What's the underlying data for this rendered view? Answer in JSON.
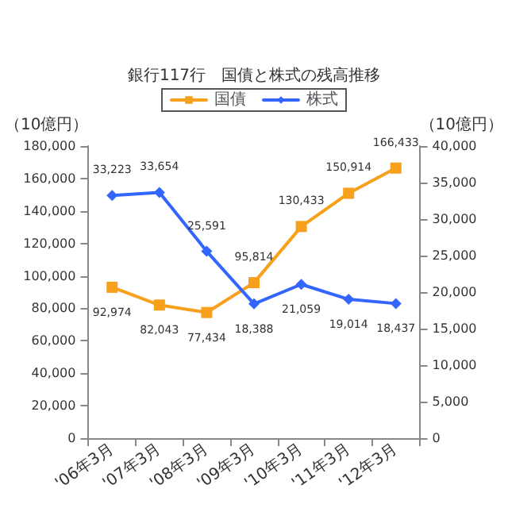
{
  "chart_data": {
    "type": "line",
    "title": "銀行117行　国債と株式の残高推移",
    "ylabel": "（10億円）",
    "y2label": "（10億円）",
    "categories": [
      "'06年3月",
      "'07年3月",
      "'08年3月",
      "'09年3月",
      "'10年3月",
      "'11年3月",
      "'12年3月"
    ],
    "series": [
      {
        "name": "国債",
        "color": "#f7a01c",
        "marker": "square",
        "values": [
          92974,
          82043,
          77434,
          95814,
          130433,
          150914,
          166433
        ],
        "value_labels": [
          "92,974",
          "82,043",
          "77,434",
          "95,814",
          "130,433",
          "150,914",
          "166,433"
        ]
      },
      {
        "name": "株式",
        "color": "#3366ff",
        "marker": "diamond",
        "axis": "y2",
        "values": [
          33223,
          33654,
          25591,
          18388,
          21059,
          19014,
          18437
        ],
        "value_labels": [
          "33,223",
          "33,654",
          "25,591",
          "18,388",
          "21,059",
          "19,014",
          "18,437"
        ]
      }
    ],
    "ylim": [
      0,
      180000
    ],
    "yticks": [
      0,
      {
        "value": 20000,
        "label": "20,000"
      },
      {
        "value": 40000,
        "label": "40,000"
      },
      {
        "value": 60000,
        "label": "60,000"
      },
      {
        "value": 80000,
        "label": "80,000"
      },
      {
        "value": 100000,
        "label": "100,000"
      },
      {
        "value": 120000,
        "label": "120,000"
      },
      {
        "value": 140000,
        "label": "140,000"
      },
      {
        "value": 160000,
        "label": "160,000"
      },
      {
        "value": 180000,
        "label": "180,000"
      }
    ],
    "y2lim": [
      0,
      40000
    ],
    "y2ticks": [
      0,
      {
        "value": 5000,
        "label": "5,000"
      },
      {
        "value": 10000,
        "label": "10,000"
      },
      {
        "value": 15000,
        "label": "15,000"
      },
      {
        "value": 20000,
        "label": "20,000"
      },
      {
        "value": 25000,
        "label": "25,000"
      },
      {
        "value": 30000,
        "label": "30,000"
      },
      {
        "value": 35000,
        "label": "35,000"
      },
      {
        "value": 40000,
        "label": "40,000"
      }
    ],
    "legend": "top",
    "line_style": "solid"
  }
}
